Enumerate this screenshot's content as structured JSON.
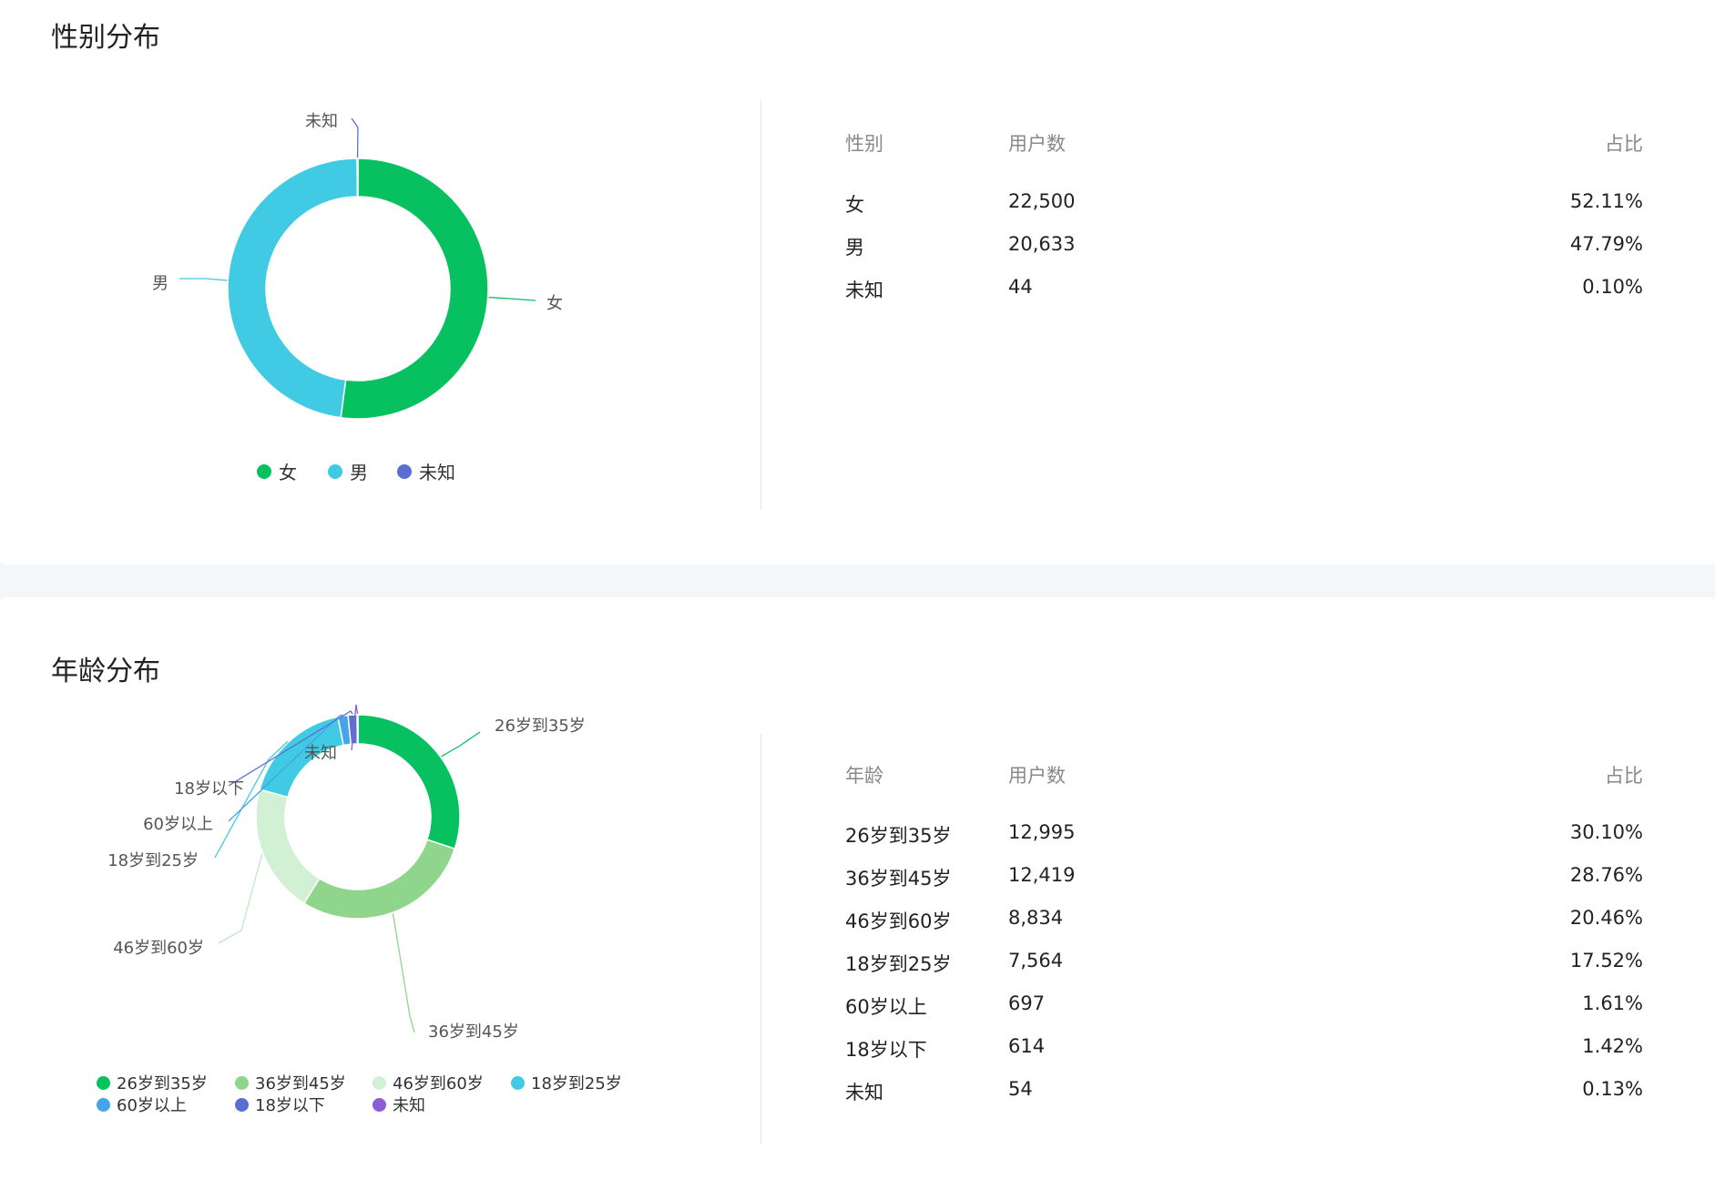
{
  "gender_section": {
    "title": "性别分布",
    "table": {
      "headers": [
        "性别",
        "用户数",
        "占比"
      ],
      "rows": [
        {
          "label": "女",
          "count": "22,500",
          "pct": "52.11%"
        },
        {
          "label": "男",
          "count": "20,633",
          "pct": "47.79%"
        },
        {
          "label": "未知",
          "count": "44",
          "pct": "0.10%"
        }
      ]
    }
  },
  "age_section": {
    "title": "年龄分布",
    "table": {
      "headers": [
        "年龄",
        "用户数",
        "占比"
      ],
      "rows": [
        {
          "label": "26岁到35岁",
          "count": "12,995",
          "pct": "30.10%"
        },
        {
          "label": "36岁到45岁",
          "count": "12,419",
          "pct": "28.76%"
        },
        {
          "label": "46岁到60岁",
          "count": "8,834",
          "pct": "20.46%"
        },
        {
          "label": "18岁到25岁",
          "count": "7,564",
          "pct": "17.52%"
        },
        {
          "label": "60岁以上",
          "count": "697",
          "pct": "1.61%"
        },
        {
          "label": "18岁以下",
          "count": "614",
          "pct": "1.42%"
        },
        {
          "label": "未知",
          "count": "54",
          "pct": "0.13%"
        }
      ]
    }
  },
  "chart_data": [
    {
      "type": "pie",
      "variant": "donut",
      "title": "性别分布",
      "legend_position": "bottom",
      "categories": [
        "女",
        "男",
        "未知"
      ],
      "values": [
        22500,
        20633,
        44
      ],
      "colors": [
        "#07c160",
        "#40cae3",
        "#5b6fd0"
      ]
    },
    {
      "type": "pie",
      "variant": "donut",
      "title": "年龄分布",
      "legend_position": "bottom",
      "categories": [
        "26岁到35岁",
        "36岁到45岁",
        "46岁到60岁",
        "18岁到25岁",
        "60岁以上",
        "18岁以下",
        "未知"
      ],
      "values": [
        12995,
        12419,
        8834,
        7564,
        697,
        614,
        54
      ],
      "colors": [
        "#07c160",
        "#8fd68c",
        "#d2f0d3",
        "#40cae3",
        "#45a4ea",
        "#5b6fd0",
        "#8d5cd6"
      ]
    }
  ]
}
